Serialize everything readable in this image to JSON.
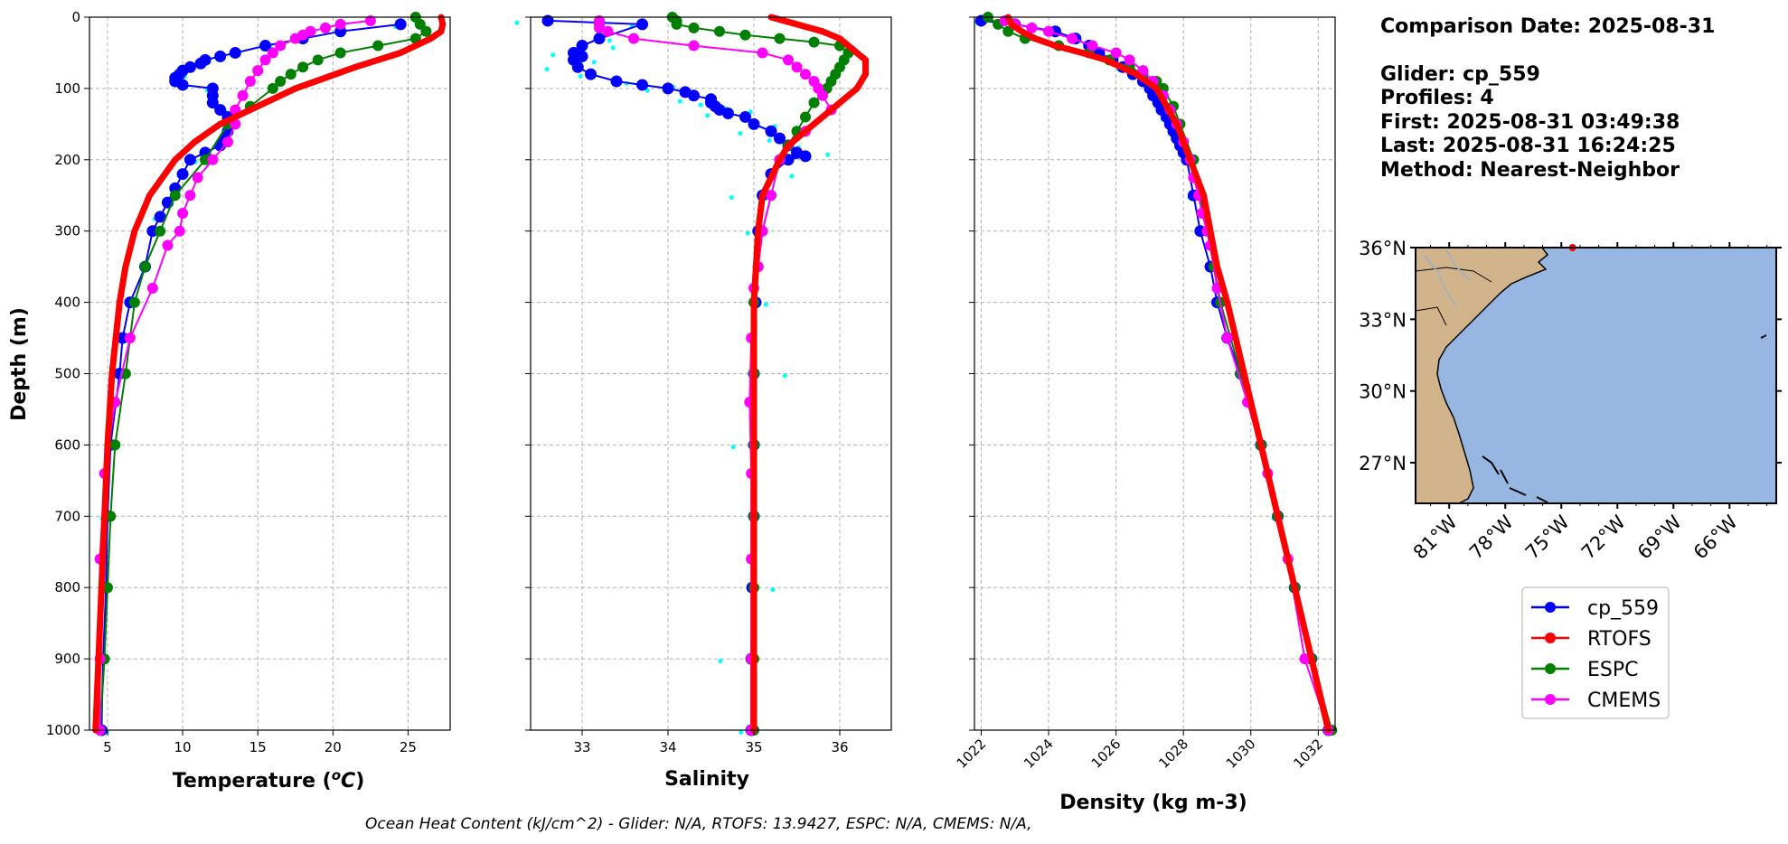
{
  "info": {
    "date_line": "Comparison Date: 2025-08-31",
    "glider_line": "Glider: cp_559",
    "profiles_line": "Profiles: 4",
    "first_line": "First: 2025-08-31 03:49:38",
    "last_line": "Last: 2025-08-31 16:24:25",
    "method_line": "Method: Nearest-Neighbor"
  },
  "footer": "Ocean Heat Content (kJ/cm^2) - Glider: N/A,  RTOFS: 13.9427,  ESPC: N/A,  CMEMS: N/A,",
  "colors": {
    "cp_559": "#0000ff",
    "cp_559_raw": "#00ffff",
    "RTOFS": "#ff0000",
    "ESPC": "#008000",
    "CMEMS": "#ff00ff",
    "grid": "#b0b0b0",
    "land": "#d2b48c",
    "ocean": "#97b6e2"
  },
  "legend": [
    "cp_559",
    "RTOFS",
    "ESPC",
    "CMEMS"
  ],
  "map": {
    "lat_labels": [
      "36°N",
      "33°N",
      "30°N",
      "27°N"
    ],
    "lon_labels": [
      "81°W",
      "78°W",
      "75°W",
      "72°W",
      "69°W",
      "66°W"
    ],
    "lat_range": [
      25.3,
      36.0
    ],
    "lon_range": [
      -82.8,
      -63.5
    ],
    "marker": {
      "lon": -74.4,
      "lat": 36.0
    }
  },
  "chart_data": [
    {
      "type": "line",
      "xlabel": "Temperature (°C)",
      "ylabel": "Depth (m)",
      "xlim": [
        3.8,
        27.8
      ],
      "ylim": [
        1000,
        0
      ],
      "xticks": [
        5,
        10,
        15,
        20,
        25
      ],
      "yticks": [
        0,
        100,
        200,
        300,
        400,
        500,
        600,
        700,
        800,
        900,
        1000
      ],
      "grid": true,
      "series": [
        {
          "name": "cp_559",
          "depth": [
            10,
            20,
            30,
            40,
            50,
            55,
            60,
            65,
            70,
            75,
            80,
            85,
            90,
            95,
            100,
            110,
            120,
            130,
            140,
            150,
            160,
            170,
            180,
            190,
            200,
            220,
            240,
            260,
            280,
            300,
            350,
            400,
            450,
            500,
            600,
            700,
            800,
            900,
            1000
          ],
          "values": [
            24.5,
            20.5,
            18.0,
            15.5,
            13.5,
            12.5,
            11.5,
            11.2,
            10.5,
            10.0,
            9.8,
            9.5,
            9.5,
            10.0,
            12.0,
            12.0,
            12.0,
            12.5,
            13.0,
            13.2,
            13.0,
            12.8,
            12.5,
            11.5,
            10.5,
            10.0,
            9.5,
            9.0,
            8.5,
            8.0,
            7.5,
            6.5,
            6.0,
            5.8,
            5.2,
            5.0,
            4.9,
            4.7,
            4.6
          ]
        },
        {
          "name": "RTOFS",
          "depth": [
            0,
            10,
            20,
            30,
            50,
            70,
            100,
            125,
            150,
            175,
            200,
            250,
            300,
            350,
            400,
            500,
            600,
            700,
            800,
            900,
            1000
          ],
          "values": [
            27.2,
            27.3,
            27.2,
            26.5,
            24.5,
            21.5,
            17.5,
            15.0,
            12.5,
            10.8,
            9.5,
            7.8,
            6.8,
            6.2,
            5.8,
            5.3,
            5.0,
            4.8,
            4.6,
            4.4,
            4.2
          ]
        },
        {
          "name": "ESPC",
          "depth": [
            0,
            10,
            20,
            30,
            40,
            50,
            60,
            70,
            80,
            90,
            100,
            125,
            150,
            200,
            250,
            300,
            350,
            400,
            500,
            600,
            700,
            800,
            900,
            1000
          ],
          "values": [
            25.5,
            25.8,
            26.2,
            25.5,
            23.0,
            20.5,
            19.0,
            18.0,
            17.2,
            16.5,
            16.0,
            14.5,
            13.0,
            11.5,
            9.5,
            8.5,
            7.5,
            6.8,
            6.2,
            5.5,
            5.2,
            5.0,
            4.8,
            4.5
          ]
        },
        {
          "name": "CMEMS",
          "depth": [
            5,
            10,
            15,
            20,
            25,
            30,
            40,
            50,
            60,
            75,
            90,
            110,
            130,
            150,
            175,
            200,
            225,
            250,
            275,
            300,
            320,
            380,
            450,
            540,
            640,
            760,
            900,
            1000
          ],
          "values": [
            22.5,
            20.5,
            19.5,
            18.5,
            18.0,
            17.5,
            16.5,
            16.0,
            15.5,
            15.0,
            14.5,
            14.0,
            13.5,
            13.5,
            13.0,
            12.0,
            11.0,
            10.5,
            10.0,
            9.8,
            9.0,
            8.0,
            6.5,
            5.5,
            4.8,
            4.5,
            4.5,
            4.5
          ]
        }
      ]
    },
    {
      "type": "line",
      "xlabel": "Salinity",
      "xlim": [
        32.4,
        36.6
      ],
      "ylim": [
        1000,
        0
      ],
      "xticks": [
        33,
        34,
        35,
        36
      ],
      "grid": true,
      "series": [
        {
          "name": "cp_559",
          "depth": [
            5,
            10,
            30,
            40,
            50,
            55,
            60,
            70,
            80,
            90,
            95,
            100,
            105,
            110,
            115,
            120,
            125,
            130,
            135,
            140,
            150,
            160,
            170,
            180,
            190,
            195,
            200,
            220,
            250,
            300,
            400,
            500,
            600,
            700,
            800,
            900,
            1000
          ],
          "values": [
            32.6,
            33.7,
            33.2,
            33.0,
            32.9,
            33.0,
            32.9,
            32.95,
            33.1,
            33.4,
            33.7,
            34.0,
            34.2,
            34.3,
            34.5,
            34.5,
            34.55,
            34.6,
            34.7,
            34.9,
            35.0,
            35.2,
            35.3,
            35.4,
            35.5,
            35.6,
            35.4,
            35.2,
            35.1,
            35.05,
            35.02,
            35.0,
            35.0,
            35.0,
            34.98,
            34.97,
            34.97
          ]
        },
        {
          "name": "RTOFS",
          "depth": [
            0,
            10,
            20,
            30,
            40,
            50,
            60,
            70,
            80,
            100,
            120,
            150,
            180,
            200,
            250,
            300,
            400,
            500,
            600,
            700,
            800,
            900,
            1000
          ],
          "values": [
            35.2,
            35.5,
            35.8,
            36.0,
            36.1,
            36.2,
            36.3,
            36.3,
            36.3,
            36.2,
            36.0,
            35.7,
            35.4,
            35.3,
            35.1,
            35.05,
            35.0,
            35.0,
            35.0,
            35.0,
            35.0,
            35.0,
            35.0
          ]
        },
        {
          "name": "ESPC",
          "depth": [
            0,
            5,
            10,
            15,
            20,
            25,
            30,
            35,
            40,
            50,
            60,
            70,
            80,
            90,
            100,
            120,
            140,
            160,
            180,
            200,
            250,
            300,
            350,
            400,
            500,
            600,
            700,
            800,
            900,
            1000
          ],
          "values": [
            34.05,
            34.1,
            34.1,
            34.3,
            34.6,
            34.9,
            35.3,
            35.7,
            36.0,
            36.1,
            36.05,
            36.0,
            35.95,
            35.9,
            35.85,
            35.7,
            35.6,
            35.5,
            35.4,
            35.3,
            35.2,
            35.1,
            35.05,
            35.0,
            35.0,
            35.0,
            35.0,
            35.0,
            35.0,
            35.0
          ]
        },
        {
          "name": "CMEMS",
          "depth": [
            5,
            10,
            15,
            20,
            30,
            40,
            50,
            60,
            70,
            80,
            90,
            100,
            110,
            130,
            160,
            200,
            250,
            300,
            350,
            380,
            450,
            540,
            640,
            760,
            900,
            1000
          ],
          "values": [
            33.2,
            33.2,
            33.2,
            33.3,
            33.6,
            34.3,
            35.1,
            35.4,
            35.5,
            35.6,
            35.7,
            35.75,
            35.8,
            35.9,
            35.6,
            35.3,
            35.2,
            35.1,
            35.05,
            35.0,
            34.97,
            34.95,
            34.97,
            34.97,
            34.97,
            34.97
          ]
        }
      ]
    },
    {
      "type": "line",
      "xlabel": "Density (kg m-3)",
      "xlim": [
        1021.8,
        1032.5
      ],
      "ylim": [
        1000,
        0
      ],
      "xticks": [
        1022,
        1024,
        1026,
        1028,
        1030,
        1032
      ],
      "grid": true,
      "series": [
        {
          "name": "cp_559",
          "depth": [
            5,
            10,
            20,
            30,
            40,
            50,
            60,
            70,
            80,
            90,
            100,
            110,
            120,
            130,
            140,
            150,
            160,
            170,
            180,
            190,
            200,
            250,
            300,
            350,
            400,
            450,
            500,
            600,
            700,
            800,
            900,
            1000
          ],
          "values": [
            1022.0,
            1023.0,
            1024.2,
            1024.8,
            1025.2,
            1025.5,
            1025.9,
            1026.2,
            1026.5,
            1026.8,
            1027.0,
            1027.1,
            1027.25,
            1027.35,
            1027.5,
            1027.6,
            1027.7,
            1027.8,
            1027.9,
            1028.0,
            1028.1,
            1028.3,
            1028.5,
            1028.8,
            1029.0,
            1029.3,
            1029.7,
            1030.3,
            1030.8,
            1031.3,
            1031.8,
            1032.3
          ]
        },
        {
          "name": "RTOFS",
          "depth": [
            0,
            10,
            20,
            30,
            40,
            50,
            60,
            80,
            100,
            125,
            150,
            200,
            250,
            300,
            350,
            400,
            500,
            600,
            700,
            800,
            900,
            1000
          ],
          "values": [
            1022.8,
            1022.9,
            1023.2,
            1023.6,
            1024.2,
            1025.0,
            1025.7,
            1026.6,
            1027.2,
            1027.5,
            1027.8,
            1028.2,
            1028.6,
            1028.8,
            1029.0,
            1029.3,
            1029.8,
            1030.3,
            1030.8,
            1031.3,
            1031.8,
            1032.3
          ]
        },
        {
          "name": "ESPC",
          "depth": [
            0,
            10,
            20,
            30,
            40,
            50,
            60,
            70,
            80,
            90,
            100,
            125,
            150,
            200,
            250,
            300,
            350,
            400,
            500,
            600,
            700,
            800,
            900,
            1000
          ],
          "values": [
            1022.2,
            1022.5,
            1022.8,
            1023.3,
            1024.3,
            1025.2,
            1025.8,
            1026.4,
            1026.8,
            1027.2,
            1027.4,
            1027.7,
            1027.9,
            1028.3,
            1028.5,
            1028.7,
            1028.9,
            1029.1,
            1029.7,
            1030.3,
            1030.8,
            1031.3,
            1031.8,
            1032.4
          ]
        },
        {
          "name": "CMEMS",
          "depth": [
            5,
            10,
            15,
            20,
            30,
            40,
            50,
            60,
            75,
            90,
            110,
            130,
            150,
            175,
            200,
            225,
            250,
            275,
            300,
            320,
            380,
            450,
            540,
            640,
            760,
            900,
            1000
          ],
          "values": [
            1022.7,
            1023.0,
            1023.5,
            1024.0,
            1024.7,
            1025.3,
            1026.0,
            1026.4,
            1026.8,
            1027.1,
            1027.4,
            1027.6,
            1027.8,
            1028.0,
            1028.2,
            1028.3,
            1028.45,
            1028.55,
            1028.7,
            1028.8,
            1029.0,
            1029.3,
            1029.9,
            1030.5,
            1031.1,
            1031.6,
            1032.3
          ]
        }
      ]
    }
  ]
}
